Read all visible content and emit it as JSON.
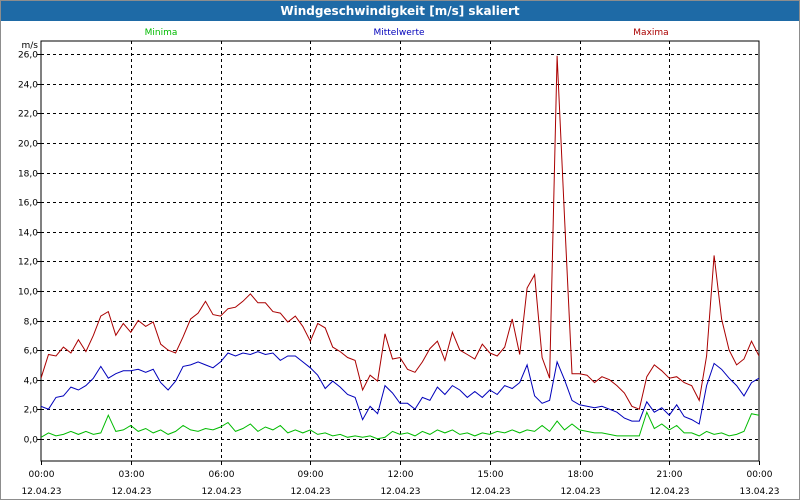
{
  "window": {
    "title": "Windgeschwindigkeit [m/s] skaliert"
  },
  "colors": {
    "min": "#00bb00",
    "mean": "#0000bb",
    "max": "#aa0000",
    "title_bg": "#1e6aa6",
    "grid": "#000000"
  },
  "chart_data": {
    "type": "line",
    "title": "Windgeschwindigkeit [m/s] skaliert",
    "ylabel": "m/s",
    "xlabel": "",
    "ylim": [
      -1.5,
      26.9
    ],
    "yticks": [
      0.0,
      2.0,
      4.0,
      6.0,
      8.0,
      10.0,
      12.0,
      14.0,
      16.0,
      18.0,
      20.0,
      22.0,
      24.0,
      26.0
    ],
    "ytick_labels": [
      "0,0",
      "2,0",
      "4,0",
      "6,0",
      "8,0",
      "10,0",
      "12,0",
      "14,0",
      "16,0",
      "18,0",
      "20,0",
      "22,0",
      "24,0",
      "26,0"
    ],
    "xlim_hours": [
      0,
      24
    ],
    "xticks": [
      {
        "hour": 0,
        "time": "00:00",
        "date": "12.04.23"
      },
      {
        "hour": 3,
        "time": "03:00",
        "date": "12.04.23"
      },
      {
        "hour": 6,
        "time": "06:00",
        "date": "12.04.23"
      },
      {
        "hour": 9,
        "time": "09:00",
        "date": "12.04.23"
      },
      {
        "hour": 12,
        "time": "12:00",
        "date": "12.04.23"
      },
      {
        "hour": 15,
        "time": "15:00",
        "date": "12.04.23"
      },
      {
        "hour": 18,
        "time": "18:00",
        "date": "12.04.23"
      },
      {
        "hour": 21,
        "time": "21:00",
        "date": "12.04.23"
      },
      {
        "hour": 24,
        "time": "00:00",
        "date": "13.04.23"
      }
    ],
    "grid": true,
    "legend": "top, centered over plot",
    "series": [
      {
        "name": "Minima",
        "color": "#00bb00",
        "points": [
          [
            0.0,
            0.1
          ],
          [
            0.25,
            0.4
          ],
          [
            0.5,
            0.2
          ],
          [
            0.75,
            0.3
          ],
          [
            1.0,
            0.5
          ],
          [
            1.25,
            0.3
          ],
          [
            1.5,
            0.5
          ],
          [
            1.75,
            0.3
          ],
          [
            2.0,
            0.4
          ],
          [
            2.25,
            1.6
          ],
          [
            2.5,
            0.5
          ],
          [
            2.75,
            0.6
          ],
          [
            3.0,
            0.9
          ],
          [
            3.25,
            0.5
          ],
          [
            3.5,
            0.7
          ],
          [
            3.75,
            0.4
          ],
          [
            4.0,
            0.6
          ],
          [
            4.25,
            0.3
          ],
          [
            4.5,
            0.5
          ],
          [
            4.75,
            0.9
          ],
          [
            5.0,
            0.6
          ],
          [
            5.25,
            0.5
          ],
          [
            5.5,
            0.7
          ],
          [
            5.75,
            0.6
          ],
          [
            6.0,
            0.8
          ],
          [
            6.25,
            1.1
          ],
          [
            6.5,
            0.5
          ],
          [
            6.75,
            0.7
          ],
          [
            7.0,
            1.0
          ],
          [
            7.25,
            0.5
          ],
          [
            7.5,
            0.8
          ],
          [
            7.75,
            0.6
          ],
          [
            8.0,
            0.9
          ],
          [
            8.25,
            0.4
          ],
          [
            8.5,
            0.6
          ],
          [
            8.75,
            0.4
          ],
          [
            9.0,
            0.6
          ],
          [
            9.25,
            0.3
          ],
          [
            9.5,
            0.4
          ],
          [
            9.75,
            0.2
          ],
          [
            10.0,
            0.3
          ],
          [
            10.25,
            0.1
          ],
          [
            10.5,
            0.2
          ],
          [
            10.75,
            0.1
          ],
          [
            11.0,
            0.2
          ],
          [
            11.25,
            0.0
          ],
          [
            11.5,
            0.1
          ],
          [
            11.75,
            0.5
          ],
          [
            12.0,
            0.3
          ],
          [
            12.25,
            0.4
          ],
          [
            12.5,
            0.2
          ],
          [
            12.75,
            0.5
          ],
          [
            13.0,
            0.3
          ],
          [
            13.25,
            0.6
          ],
          [
            13.5,
            0.4
          ],
          [
            13.75,
            0.6
          ],
          [
            14.0,
            0.3
          ],
          [
            14.25,
            0.4
          ],
          [
            14.5,
            0.2
          ],
          [
            14.75,
            0.4
          ],
          [
            15.0,
            0.3
          ],
          [
            15.25,
            0.5
          ],
          [
            15.5,
            0.4
          ],
          [
            15.75,
            0.6
          ],
          [
            16.0,
            0.4
          ],
          [
            16.25,
            0.6
          ],
          [
            16.5,
            0.5
          ],
          [
            16.75,
            0.9
          ],
          [
            17.0,
            0.5
          ],
          [
            17.25,
            1.2
          ],
          [
            17.5,
            0.6
          ],
          [
            17.75,
            1.0
          ],
          [
            18.0,
            0.6
          ],
          [
            18.25,
            0.5
          ],
          [
            18.5,
            0.4
          ],
          [
            18.75,
            0.4
          ],
          [
            19.0,
            0.3
          ],
          [
            19.25,
            0.2
          ],
          [
            19.5,
            0.2
          ],
          [
            19.75,
            0.2
          ],
          [
            20.0,
            0.2
          ],
          [
            20.25,
            1.8
          ],
          [
            20.5,
            0.7
          ],
          [
            20.75,
            1.0
          ],
          [
            21.0,
            0.6
          ],
          [
            21.25,
            0.9
          ],
          [
            21.5,
            0.4
          ],
          [
            21.75,
            0.4
          ],
          [
            22.0,
            0.2
          ],
          [
            22.25,
            0.5
          ],
          [
            22.5,
            0.3
          ],
          [
            22.75,
            0.4
          ],
          [
            23.0,
            0.2
          ],
          [
            23.25,
            0.3
          ],
          [
            23.5,
            0.5
          ],
          [
            23.75,
            1.7
          ],
          [
            24.0,
            1.6
          ]
        ]
      },
      {
        "name": "Mittelwerte",
        "color": "#0000bb",
        "points": [
          [
            0.0,
            2.2
          ],
          [
            0.25,
            2.0
          ],
          [
            0.5,
            2.8
          ],
          [
            0.75,
            2.9
          ],
          [
            1.0,
            3.5
          ],
          [
            1.25,
            3.3
          ],
          [
            1.5,
            3.6
          ],
          [
            1.75,
            4.1
          ],
          [
            2.0,
            4.9
          ],
          [
            2.25,
            4.1
          ],
          [
            2.5,
            4.4
          ],
          [
            2.75,
            4.6
          ],
          [
            3.0,
            4.6
          ],
          [
            3.25,
            4.7
          ],
          [
            3.5,
            4.5
          ],
          [
            3.75,
            4.7
          ],
          [
            4.0,
            3.8
          ],
          [
            4.25,
            3.3
          ],
          [
            4.5,
            3.9
          ],
          [
            4.75,
            4.9
          ],
          [
            5.0,
            5.0
          ],
          [
            5.25,
            5.2
          ],
          [
            5.5,
            5.0
          ],
          [
            5.75,
            4.8
          ],
          [
            6.0,
            5.2
          ],
          [
            6.25,
            5.8
          ],
          [
            6.5,
            5.6
          ],
          [
            6.75,
            5.8
          ],
          [
            7.0,
            5.7
          ],
          [
            7.25,
            5.9
          ],
          [
            7.5,
            5.7
          ],
          [
            7.75,
            5.8
          ],
          [
            8.0,
            5.3
          ],
          [
            8.25,
            5.6
          ],
          [
            8.5,
            5.6
          ],
          [
            8.75,
            5.2
          ],
          [
            9.0,
            4.8
          ],
          [
            9.25,
            4.3
          ],
          [
            9.5,
            3.4
          ],
          [
            9.75,
            3.9
          ],
          [
            10.0,
            3.5
          ],
          [
            10.25,
            3.0
          ],
          [
            10.5,
            2.8
          ],
          [
            10.75,
            1.3
          ],
          [
            11.0,
            2.2
          ],
          [
            11.25,
            1.7
          ],
          [
            11.5,
            3.6
          ],
          [
            11.75,
            3.1
          ],
          [
            12.0,
            2.4
          ],
          [
            12.25,
            2.4
          ],
          [
            12.5,
            2.0
          ],
          [
            12.75,
            2.8
          ],
          [
            13.0,
            2.6
          ],
          [
            13.25,
            3.5
          ],
          [
            13.5,
            3.0
          ],
          [
            13.75,
            3.6
          ],
          [
            14.0,
            3.3
          ],
          [
            14.25,
            2.8
          ],
          [
            14.5,
            3.2
          ],
          [
            14.75,
            2.8
          ],
          [
            15.0,
            3.3
          ],
          [
            15.25,
            3.0
          ],
          [
            15.5,
            3.6
          ],
          [
            15.75,
            3.4
          ],
          [
            16.0,
            3.8
          ],
          [
            16.25,
            5.0
          ],
          [
            16.5,
            2.9
          ],
          [
            16.75,
            2.4
          ],
          [
            17.0,
            2.6
          ],
          [
            17.25,
            5.2
          ],
          [
            17.5,
            4.0
          ],
          [
            17.75,
            2.6
          ],
          [
            18.0,
            2.3
          ],
          [
            18.25,
            2.2
          ],
          [
            18.5,
            2.1
          ],
          [
            18.75,
            2.2
          ],
          [
            19.0,
            2.0
          ],
          [
            19.25,
            1.8
          ],
          [
            19.5,
            1.4
          ],
          [
            19.75,
            1.2
          ],
          [
            20.0,
            1.2
          ],
          [
            20.25,
            2.5
          ],
          [
            20.5,
            1.8
          ],
          [
            20.75,
            2.1
          ],
          [
            21.0,
            1.6
          ],
          [
            21.25,
            2.3
          ],
          [
            21.5,
            1.5
          ],
          [
            21.75,
            1.3
          ],
          [
            22.0,
            1.0
          ],
          [
            22.25,
            3.6
          ],
          [
            22.5,
            5.1
          ],
          [
            22.75,
            4.7
          ],
          [
            23.0,
            4.1
          ],
          [
            23.25,
            3.6
          ],
          [
            23.5,
            2.9
          ],
          [
            23.75,
            3.8
          ],
          [
            24.0,
            4.1
          ]
        ]
      },
      {
        "name": "Maxima",
        "color": "#aa0000",
        "points": [
          [
            0.0,
            4.1
          ],
          [
            0.25,
            5.7
          ],
          [
            0.5,
            5.6
          ],
          [
            0.75,
            6.2
          ],
          [
            1.0,
            5.8
          ],
          [
            1.25,
            6.7
          ],
          [
            1.5,
            5.9
          ],
          [
            1.75,
            7.0
          ],
          [
            2.0,
            8.3
          ],
          [
            2.25,
            8.6
          ],
          [
            2.5,
            7.0
          ],
          [
            2.75,
            7.8
          ],
          [
            3.0,
            7.2
          ],
          [
            3.25,
            8.0
          ],
          [
            3.5,
            7.6
          ],
          [
            3.75,
            7.9
          ],
          [
            4.0,
            6.4
          ],
          [
            4.25,
            6.0
          ],
          [
            4.5,
            5.8
          ],
          [
            4.75,
            6.9
          ],
          [
            5.0,
            8.1
          ],
          [
            5.25,
            8.5
          ],
          [
            5.5,
            9.3
          ],
          [
            5.75,
            8.4
          ],
          [
            6.0,
            8.3
          ],
          [
            6.25,
            8.8
          ],
          [
            6.5,
            8.9
          ],
          [
            6.75,
            9.3
          ],
          [
            7.0,
            9.8
          ],
          [
            7.25,
            9.2
          ],
          [
            7.5,
            9.2
          ],
          [
            7.75,
            8.6
          ],
          [
            8.0,
            8.5
          ],
          [
            8.25,
            7.9
          ],
          [
            8.5,
            8.3
          ],
          [
            8.75,
            7.6
          ],
          [
            9.0,
            6.6
          ],
          [
            9.25,
            7.8
          ],
          [
            9.5,
            7.5
          ],
          [
            9.75,
            6.2
          ],
          [
            10.0,
            5.9
          ],
          [
            10.25,
            5.5
          ],
          [
            10.5,
            5.3
          ],
          [
            10.75,
            3.3
          ],
          [
            11.0,
            4.3
          ],
          [
            11.25,
            3.9
          ],
          [
            11.5,
            7.1
          ],
          [
            11.75,
            5.4
          ],
          [
            12.0,
            5.5
          ],
          [
            12.25,
            4.7
          ],
          [
            12.5,
            4.5
          ],
          [
            12.75,
            5.2
          ],
          [
            13.0,
            6.1
          ],
          [
            13.25,
            6.6
          ],
          [
            13.5,
            5.3
          ],
          [
            13.75,
            7.2
          ],
          [
            14.0,
            6.0
          ],
          [
            14.25,
            5.7
          ],
          [
            14.5,
            5.4
          ],
          [
            14.75,
            6.4
          ],
          [
            15.0,
            5.8
          ],
          [
            15.25,
            5.6
          ],
          [
            15.5,
            6.2
          ],
          [
            15.75,
            8.1
          ],
          [
            16.0,
            5.7
          ],
          [
            16.25,
            10.2
          ],
          [
            16.5,
            11.1
          ],
          [
            16.75,
            5.5
          ],
          [
            17.0,
            4.1
          ],
          [
            17.25,
            25.9
          ],
          [
            17.5,
            15.0
          ],
          [
            17.75,
            4.4
          ],
          [
            18.0,
            4.4
          ],
          [
            18.25,
            4.3
          ],
          [
            18.5,
            3.8
          ],
          [
            18.75,
            4.2
          ],
          [
            19.0,
            4.0
          ],
          [
            19.25,
            3.6
          ],
          [
            19.5,
            3.1
          ],
          [
            19.75,
            2.2
          ],
          [
            20.0,
            2.0
          ],
          [
            20.25,
            4.2
          ],
          [
            20.5,
            5.0
          ],
          [
            20.75,
            4.6
          ],
          [
            21.0,
            4.1
          ],
          [
            21.25,
            4.2
          ],
          [
            21.5,
            3.8
          ],
          [
            21.75,
            3.6
          ],
          [
            22.0,
            2.6
          ],
          [
            22.25,
            5.6
          ],
          [
            22.5,
            12.4
          ],
          [
            22.75,
            8.1
          ],
          [
            23.0,
            6.0
          ],
          [
            23.25,
            5.0
          ],
          [
            23.5,
            5.4
          ],
          [
            23.75,
            6.6
          ],
          [
            24.0,
            5.6
          ]
        ]
      }
    ]
  }
}
